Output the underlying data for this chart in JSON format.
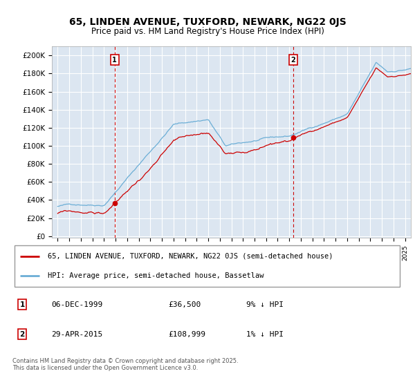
{
  "title_line1": "65, LINDEN AVENUE, TUXFORD, NEWARK, NG22 0JS",
  "title_line2": "Price paid vs. HM Land Registry's House Price Index (HPI)",
  "legend_line1": "65, LINDEN AVENUE, TUXFORD, NEWARK, NG22 0JS (semi-detached house)",
  "legend_line2": "HPI: Average price, semi-detached house, Bassetlaw",
  "annotation1_label": "1",
  "annotation1_date": "06-DEC-1999",
  "annotation1_price": "£36,500",
  "annotation1_hpi": "9% ↓ HPI",
  "annotation1_year": 1999.92,
  "annotation2_label": "2",
  "annotation2_date": "29-APR-2015",
  "annotation2_price": "£108,999",
  "annotation2_hpi": "1% ↓ HPI",
  "annotation2_year": 2015.33,
  "sale1_value": 36500,
  "sale2_value": 108999,
  "yticks": [
    0,
    20000,
    40000,
    60000,
    80000,
    100000,
    120000,
    140000,
    160000,
    180000,
    200000
  ],
  "ytick_labels": [
    "£0",
    "£20K",
    "£40K",
    "£60K",
    "£80K",
    "£100K",
    "£120K",
    "£140K",
    "£160K",
    "£180K",
    "£200K"
  ],
  "xmin": 1994.5,
  "xmax": 2025.5,
  "ymin": -2000,
  "ymax": 210000,
  "background_color": "#dce6f1",
  "hpi_color": "#6baed6",
  "sale_color": "#cc0000",
  "annotation_color": "#cc0000",
  "grid_color": "#ffffff",
  "footnote": "Contains HM Land Registry data © Crown copyright and database right 2025.\nThis data is licensed under the Open Government Licence v3.0."
}
